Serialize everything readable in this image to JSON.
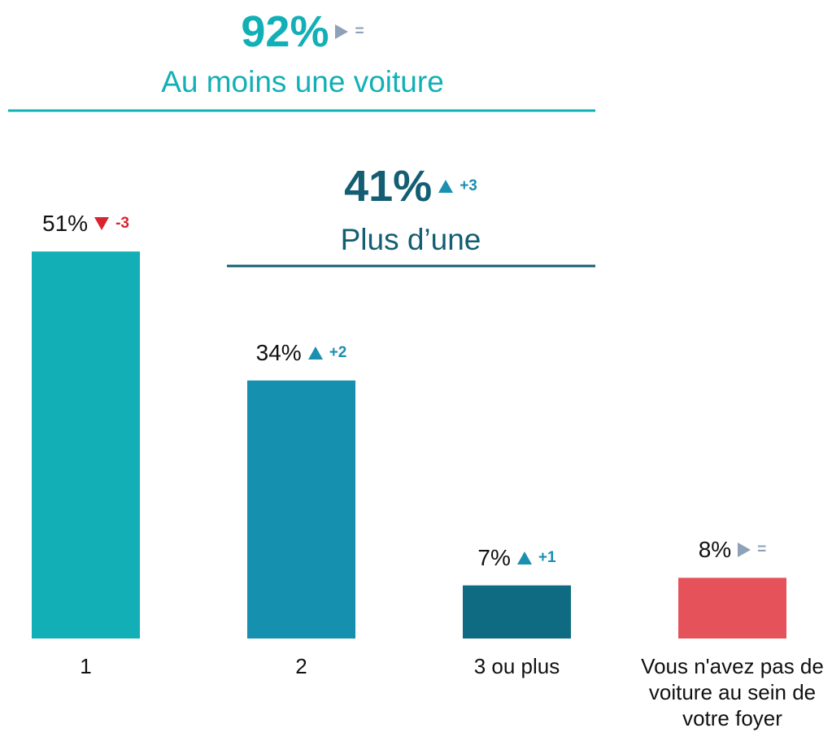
{
  "chart_data": {
    "type": "bar",
    "categories": [
      "1",
      "2",
      "3 ou plus",
      "Vous n'avez pas de voiture au sein de votre foyer"
    ],
    "values": [
      51,
      34,
      7,
      8
    ],
    "value_labels": [
      "51%",
      "34%",
      "7%",
      "8%"
    ],
    "changes": [
      "-3",
      "+2",
      "+1",
      "="
    ],
    "colors": [
      "#12b0b6",
      "#1590ae",
      "#0f6b82",
      "#e5525a"
    ],
    "change_colors": {
      "up": "#1a8fb0",
      "down": "#d9232e",
      "same": "#8fa1b8"
    },
    "annotations": [
      {
        "value_label": "92%",
        "change": "=",
        "label": "Au moins une voiture",
        "color": "#12b0b6"
      },
      {
        "value_label": "41%",
        "change": "+3",
        "label": "Plus d’une",
        "color": "#135e72"
      }
    ]
  }
}
